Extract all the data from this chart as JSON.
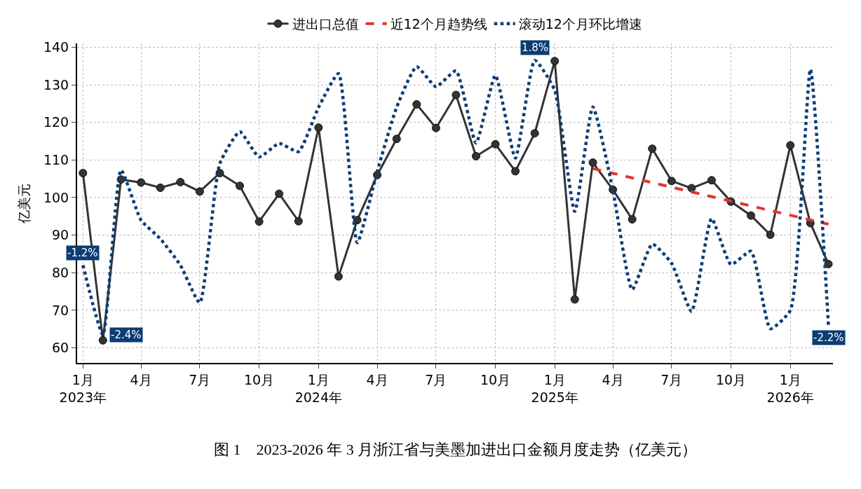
{
  "chart_data": {
    "type": "line",
    "title": "图 1　2023-2026 年 3 月浙江省与美墨加进出口金额月度走势（亿美元）",
    "ylabel": "亿美元",
    "x": [
      "2023-01",
      "2023-02",
      "2023-03",
      "2023-04",
      "2023-05",
      "2023-06",
      "2023-07",
      "2023-08",
      "2023-09",
      "2023-10",
      "2023-11",
      "2023-12",
      "2024-01",
      "2024-02",
      "2024-03",
      "2024-04",
      "2024-05",
      "2024-06",
      "2024-07",
      "2024-08",
      "2024-09",
      "2024-10",
      "2024-11",
      "2024-12",
      "2025-01",
      "2025-02",
      "2025-03",
      "2025-04",
      "2025-05",
      "2025-06",
      "2025-07",
      "2025-08",
      "2025-09",
      "2025-10",
      "2025-11",
      "2025-12",
      "2026-01",
      "2026-02",
      "2026-03"
    ],
    "series": [
      {
        "name": "进出口总值",
        "color": "#333333",
        "marker": "circle",
        "line_style": "solid",
        "values": [
          106.5,
          62,
          104.8,
          104,
          102.6,
          104.1,
          101.6,
          106.5,
          103.1,
          93.6,
          101,
          93.7,
          118.6,
          79,
          94,
          106,
          115.6,
          124.8,
          118.5,
          127.3,
          111,
          114.2,
          107,
          117.1,
          136.3,
          72.9,
          109.3,
          102.1,
          94.2,
          113,
          104.4,
          102.5,
          104.6,
          98.9,
          95.2,
          90.1,
          113.9,
          93.2,
          82.3
        ]
      },
      {
        "name": "近12个月趋势线",
        "color": "#e8312a",
        "marker": "none",
        "line_style": "dashed",
        "x": [
          "2025-03",
          "2026-03"
        ],
        "values": [
          107.7,
          92.9
        ]
      },
      {
        "name": "滚动12个月环比增速",
        "color": "#0b3d74",
        "marker": "none",
        "line_style": "dotted",
        "values": [
          82,
          63.5,
          107.3,
          94,
          89,
          82,
          72,
          109,
          117.5,
          110.8,
          114.4,
          112.2,
          124,
          133,
          88,
          107,
          124,
          134.8,
          129.5,
          133.7,
          114.5,
          132.5,
          110.5,
          136.5,
          128.5,
          96.3,
          124.1,
          102,
          75.5,
          87.6,
          82.5,
          69.7,
          94.4,
          82.2,
          85.7,
          65.1,
          70,
          134.1,
          66
        ]
      }
    ],
    "annotations": [
      {
        "text": "-1.2%",
        "x": "2023-01",
        "y": 82
      },
      {
        "text": "-2.4%",
        "x": "2023-02",
        "y": 63.5
      },
      {
        "text": "1.8%",
        "x": "2024-12",
        "y": 136.5
      },
      {
        "text": "-2.2%",
        "x": "2026-03",
        "y": 66
      }
    ],
    "xlim": [
      "2022-12-23",
      "2026-03-08"
    ],
    "xticks": [
      {
        "value": "2023-01",
        "label": "1月\n2023年"
      },
      {
        "value": "2023-04",
        "label": "4月"
      },
      {
        "value": "2023-07",
        "label": "7月"
      },
      {
        "value": "2023-10",
        "label": "10月"
      },
      {
        "value": "2024-01",
        "label": "1月\n2024年"
      },
      {
        "value": "2024-04",
        "label": "4月"
      },
      {
        "value": "2024-07",
        "label": "7月"
      },
      {
        "value": "2024-10",
        "label": "10月"
      },
      {
        "value": "2025-01",
        "label": "1月\n2025年"
      },
      {
        "value": "2025-04",
        "label": "4月"
      },
      {
        "value": "2025-07",
        "label": "7月"
      },
      {
        "value": "2025-10",
        "label": "10月"
      },
      {
        "value": "2026-01",
        "label": "1月\n2026年"
      }
    ],
    "ylim": [
      56,
      141
    ],
    "yticks": [
      60,
      70,
      80,
      90,
      100,
      110,
      120,
      130,
      140
    ],
    "grid": true,
    "legend": "top"
  }
}
